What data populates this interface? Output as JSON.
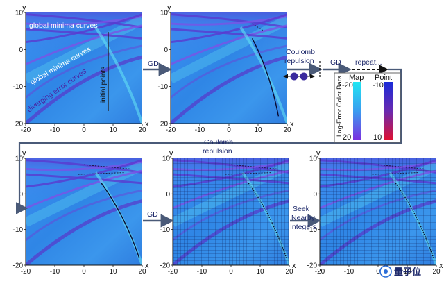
{
  "axes": {
    "x_label": "x",
    "y_label": "y",
    "x_ticks": [
      "-20",
      "-10",
      "0",
      "10",
      "20"
    ],
    "y_ticks": [
      "10",
      "0",
      "-10",
      "-20"
    ],
    "xlim": [
      -20,
      20
    ],
    "ylim": [
      -20,
      10
    ]
  },
  "panel1": {
    "annotations": {
      "global_minima_top": "global minima curves",
      "global_minima_mid": "global minima curves",
      "diverging": "diverging error curves",
      "initial_points": "initial points"
    }
  },
  "flow": {
    "gd1": "GD",
    "coulomb1_line1": "Coulomb",
    "coulomb1_line2": "repulsion",
    "gd2": "GD",
    "repeat": "repeat...",
    "coulomb2_line1": "Coulomb",
    "coulomb2_line2": "repulsion",
    "gd3": "GD",
    "seek_line1": "Seek",
    "seek_line2": "Nearby",
    "seek_line3": "Integers"
  },
  "legend": {
    "title": "Log-Error Color Bars",
    "map_label": "Map",
    "point_label": "Point",
    "map_top": "-20",
    "map_bottom": "20",
    "point_top": "-10",
    "point_bottom": "10"
  },
  "colors": {
    "field_base": "#2e86e8",
    "field_light": "#4fd2f0",
    "minima_curve": "#6a3fd8",
    "arrow": "#4a5a78",
    "map_bar_top": "#21e0f0",
    "map_bar_bottom": "#7b2fe0",
    "point_bar_top": "#1a2bd8",
    "point_bar_bottom": "#e01030"
  },
  "watermark": "量子位"
}
